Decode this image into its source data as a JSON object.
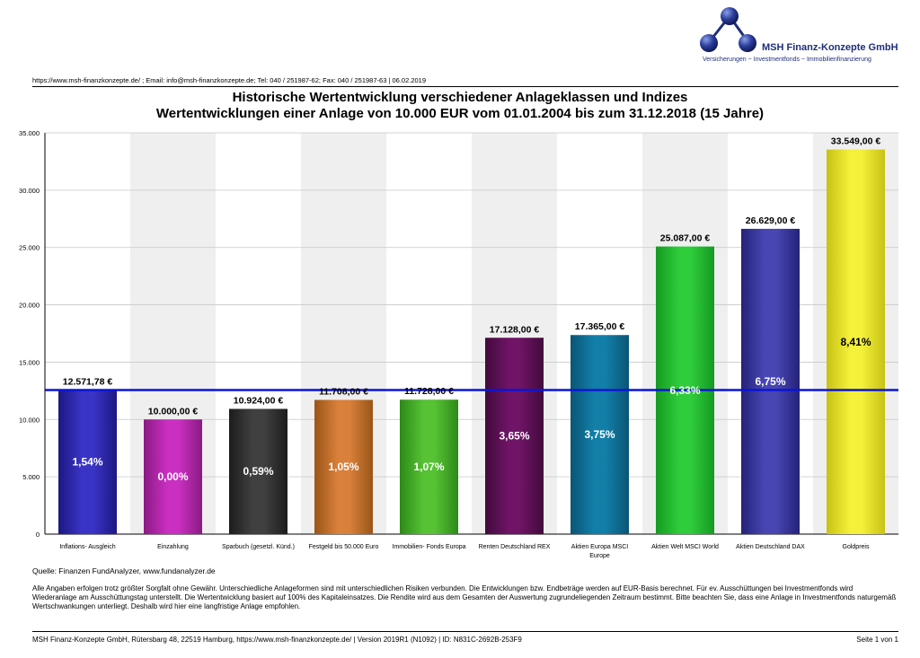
{
  "company": {
    "name": "MSH Finanz-Konzepte GmbH",
    "tagline": "Versicherungen ~ Investmentfonds ~ Immobilienfinanzierung"
  },
  "header_line": "https://www.msh-finanzkonzepte.de/ ; Email: info@msh-finanzkonzepte.de; Tel: 040 / 251987-62; Fax: 040 / 251987-63 | 06.02.2019",
  "colors": {
    "brand": "#1f2f7a",
    "reference_line": "#0a14d8"
  },
  "chart_data": {
    "type": "bar",
    "title": "Historische Wertentwicklung verschiedener Anlageklassen und Indizes",
    "subtitle": "Wertentwicklungen einer Anlage von 10.000 EUR vom 01.01.2004 bis zum 31.12.2018 (15 Jahre)",
    "ylim": [
      0,
      35000
    ],
    "yticks": [
      "0",
      "5.000",
      "10.000",
      "15.000",
      "20.000",
      "25.000",
      "30.000",
      "35.000"
    ],
    "grid": true,
    "reference_line": 12571.78,
    "categories": [
      [
        "Inflations- Ausgleich"
      ],
      [
        "Einzahlung"
      ],
      [
        "Sparbuch (gesetzl. Künd.)"
      ],
      [
        "Festgeld bis 50.000 Euro"
      ],
      [
        "Immobilien- Fonds Europa"
      ],
      [
        "Renten Deutschland REX"
      ],
      [
        "Aktien Europa MSCI",
        "Europe"
      ],
      [
        "Aktien Welt MSCI World"
      ],
      [
        "Aktien Deutschland DAX"
      ],
      [
        "Goldpreis"
      ]
    ],
    "values": [
      12571.78,
      10000.0,
      10924.0,
      11708.0,
      11728.0,
      17128.0,
      17365.0,
      25087.0,
      26629.0,
      33549.0
    ],
    "value_labels": [
      "12.571,78 €",
      "10.000,00 €",
      "10.924,00 €",
      "11.708,00 €",
      "11.728,00 €",
      "17.128,00 €",
      "17.365,00 €",
      "25.087,00 €",
      "26.629,00 €",
      "33.549,00 €"
    ],
    "rates": [
      "1,54%",
      "0,00%",
      "0,59%",
      "1,05%",
      "1,07%",
      "3,65%",
      "3,75%",
      "6,33%",
      "6,75%",
      "8,41%"
    ],
    "bar_colors": [
      "#3a34c6",
      "#c92fc0",
      "#404040",
      "#d9803a",
      "#56c234",
      "#6f1466",
      "#127fa8",
      "#2fcc3c",
      "#4846b2",
      "#f5f03a"
    ],
    "bar_dark_colors": [
      "#1c1880",
      "#8a1a84",
      "#1c1c1c",
      "#9a5518",
      "#2d8a18",
      "#420a3c",
      "#0a5575",
      "#169a22",
      "#242278",
      "#c7c214"
    ],
    "rate_text_colors": [
      "#ffffff",
      "#ffffff",
      "#ffffff",
      "#ffffff",
      "#ffffff",
      "#ffffff",
      "#ffffff",
      "#ffffff",
      "#ffffff",
      "#000000"
    ]
  },
  "source": "Quelle: Finanzen FundAnalyzer, www.fundanalyzer.de",
  "disclaimer": "Alle Angaben erfolgen trotz größter Sorgfalt ohne Gewähr. Unterschiedliche Anlageformen sind mit unterschiedlichen Risiken verbunden. Die Entwicklungen bzw. Endbeträge werden auf EUR-Basis berechnet. Für ev. Ausschüttungen bei Investmentfonds wird Wiederanlage am Ausschüttungstag unterstellt. Die Wertentwicklung basiert auf 100% des Kapitaleinsatzes. Die Rendite wird aus dem Gesamten der Auswertung zugrundeliegenden Zeitraum bestimmt. Bitte beachten Sie, dass eine Anlage in Investmentfonds naturgemäß Wertschwankungen unterliegt. Deshalb wird hier eine langfristige Anlage empfohlen.",
  "footer": {
    "left": "MSH Finanz-Konzepte GmbH, Rütersbarg 48, 22519 Hamburg, https://www.msh-finanzkonzepte.de/ | Version 2019R1 (N1092) | ID: N831C-2692B-253F9",
    "right": "Seite 1 von 1"
  }
}
